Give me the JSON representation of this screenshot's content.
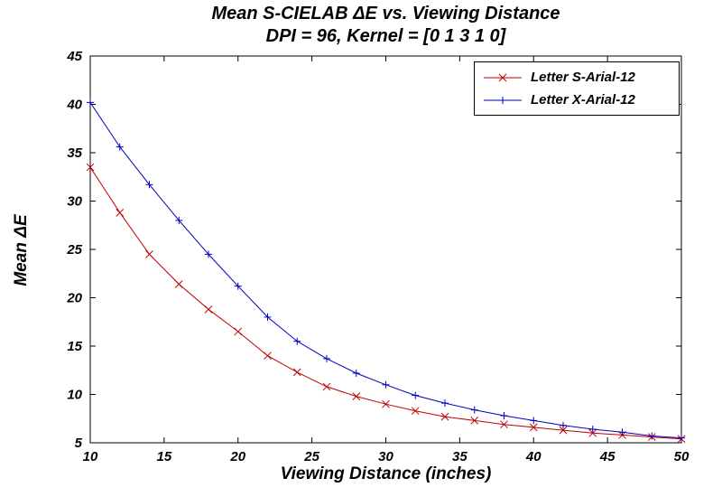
{
  "chart_data": {
    "type": "line",
    "title": "Mean S-CIELAB ΔE vs. Viewing Distance",
    "subtitle": "DPI = 96, Kernel = [0 1 3 1 0]",
    "xlabel": "Viewing Distance (inches)",
    "ylabel": "Mean ΔE",
    "xlim": [
      10,
      50
    ],
    "ylim": [
      5,
      45
    ],
    "xticks": [
      10,
      15,
      20,
      25,
      30,
      35,
      40,
      45,
      50
    ],
    "yticks": [
      5,
      10,
      15,
      20,
      25,
      30,
      35,
      40,
      45
    ],
    "grid": false,
    "legend_position": "top-right",
    "x": [
      10,
      12,
      14,
      16,
      18,
      20,
      22,
      24,
      26,
      28,
      30,
      32,
      34,
      36,
      38,
      40,
      42,
      44,
      46,
      48,
      50
    ],
    "series": [
      {
        "name": "Letter S-Arial-12",
        "color": "#bf0000",
        "marker": "x",
        "values": [
          33.5,
          28.8,
          24.5,
          21.4,
          18.8,
          16.5,
          14.0,
          12.3,
          10.8,
          9.8,
          9.0,
          8.3,
          7.7,
          7.3,
          6.9,
          6.6,
          6.3,
          6.0,
          5.8,
          5.6,
          5.4
        ]
      },
      {
        "name": "Letter X-Arial-12",
        "color": "#0000c0",
        "marker": "+",
        "values": [
          40.2,
          35.6,
          31.7,
          28.0,
          24.5,
          21.2,
          18.0,
          15.5,
          13.7,
          12.2,
          11.0,
          9.9,
          9.1,
          8.4,
          7.8,
          7.3,
          6.8,
          6.4,
          6.1,
          5.7,
          5.5
        ]
      }
    ]
  }
}
